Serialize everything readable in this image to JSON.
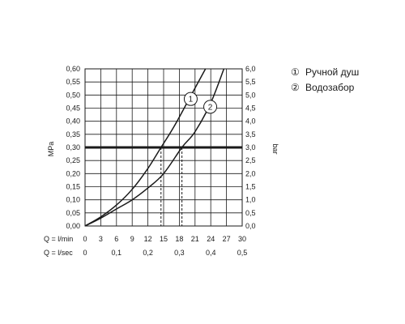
{
  "chart_data": {
    "type": "line",
    "ylabel_left": "MPa",
    "ylabel_right": "bar",
    "y_left_ticks": [
      "0,00",
      "0,05",
      "0,10",
      "0,15",
      "0,20",
      "0,25",
      "0,30",
      "0,35",
      "0,40",
      "0,45",
      "0,50",
      "0,55",
      "0,60"
    ],
    "y_right_ticks": [
      "0,0",
      "0,5",
      "1,0",
      "1,5",
      "2,0",
      "2,5",
      "3,0",
      "3,5",
      "4,0",
      "4,5",
      "5,0",
      "5,5",
      "6,0"
    ],
    "ylim": [
      0,
      0.6
    ],
    "y2lim": [
      0,
      6
    ],
    "x_lmin_label": "Q = l/min",
    "x_lmin_ticks": [
      "0",
      "3",
      "6",
      "9",
      "12",
      "15",
      "18",
      "21",
      "24",
      "27",
      "30"
    ],
    "x_lsec_label": "Q = l/sec",
    "x_lsec_ticks": [
      "0",
      "0,1",
      "0,2",
      "0,3",
      "0,4",
      "0,5"
    ],
    "xlim": [
      0,
      30
    ],
    "reference_line": {
      "y": 0.3
    },
    "series": [
      {
        "name": "Ручной душ",
        "marker": "1",
        "x": [
          0,
          3,
          6,
          9,
          12,
          14.5,
          17,
          20,
          23
        ],
        "y": [
          0,
          0.035,
          0.08,
          0.14,
          0.22,
          0.3,
          0.38,
          0.49,
          0.6
        ]
      },
      {
        "name": "Водозабор",
        "marker": "2",
        "x": [
          0,
          3,
          6,
          9,
          12,
          15,
          18.5,
          21,
          24,
          26.5
        ],
        "y": [
          0,
          0.03,
          0.065,
          0.1,
          0.145,
          0.2,
          0.3,
          0.36,
          0.47,
          0.6
        ]
      }
    ],
    "dashed_drops": [
      14.5,
      18.5
    ],
    "grid": true,
    "legend_position": "right"
  },
  "legend": {
    "items": [
      {
        "marker": "①",
        "label": "Ручной душ"
      },
      {
        "marker": "②",
        "label": "Водозабор"
      }
    ]
  },
  "colors": {
    "line": "#1a1a1a",
    "grid": "#1a1a1a",
    "background": "#ffffff"
  }
}
